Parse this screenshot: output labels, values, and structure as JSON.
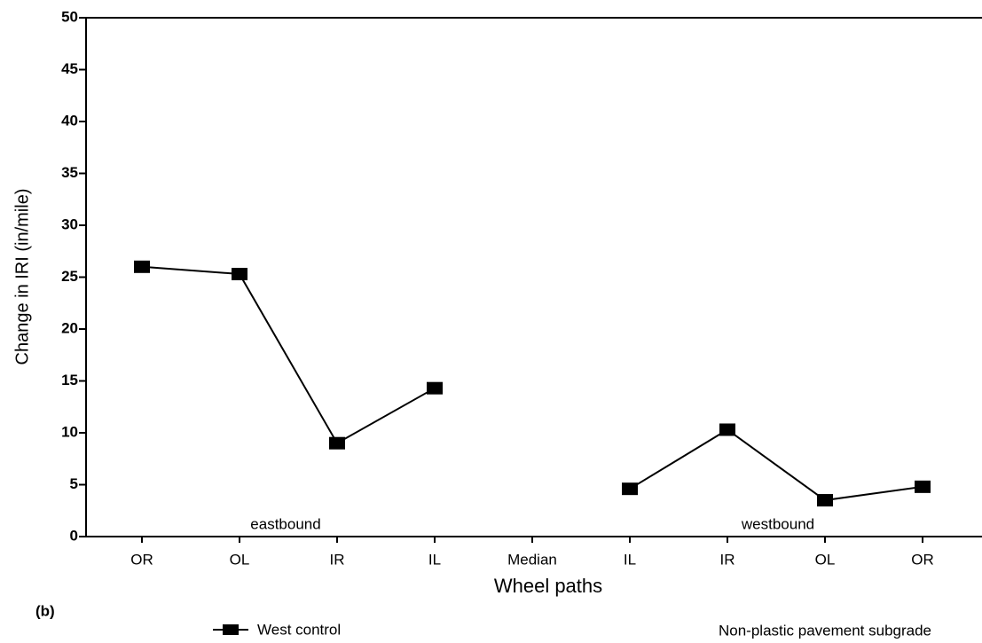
{
  "chart_data": {
    "type": "line",
    "panel_label": "(b)",
    "x_label": "Wheel paths",
    "y_label": "Change in IRI (in/mile)",
    "annotations": [
      "eastbound",
      "westbound"
    ],
    "note": "Non-plastic pavement subgrade",
    "categories": [
      "OR",
      "OL",
      "IR",
      "IL",
      "Median",
      "IL",
      "IR",
      "OL",
      "OR"
    ],
    "series": [
      {
        "name": "West control",
        "color": "#000000",
        "values": [
          26,
          25.3,
          9,
          14.3,
          null,
          4.6,
          10.3,
          3.5,
          4.8
        ]
      }
    ],
    "ylim": [
      0,
      50
    ],
    "yticks": [
      0,
      5,
      10,
      15,
      20,
      25,
      30,
      35,
      40,
      45,
      50
    ],
    "grid": false
  }
}
